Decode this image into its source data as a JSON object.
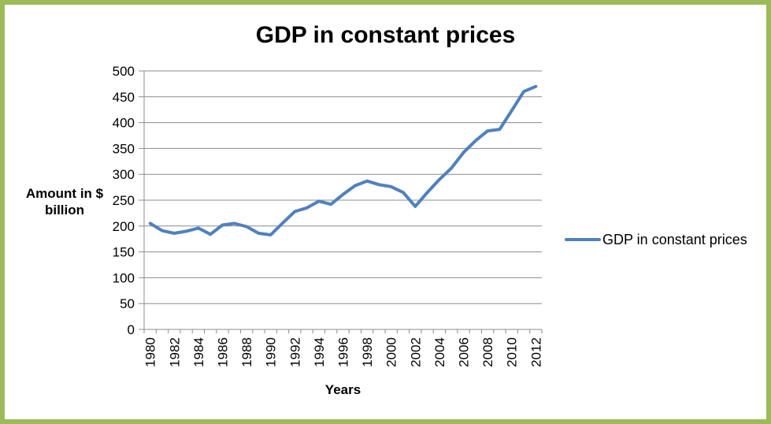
{
  "window": {
    "background": "#FFFFFF",
    "border_color": "#9BBB59"
  },
  "chart_data": {
    "type": "line",
    "title": "GDP in constant prices",
    "xlabel": "Years",
    "ylabel": "Amount in $ billion",
    "x": [
      1980,
      1981,
      1982,
      1983,
      1984,
      1985,
      1986,
      1987,
      1988,
      1989,
      1990,
      1991,
      1992,
      1993,
      1994,
      1995,
      1996,
      1997,
      1998,
      1999,
      2000,
      2001,
      2002,
      2003,
      2004,
      2005,
      2006,
      2007,
      2008,
      2009,
      2010,
      2011,
      2012
    ],
    "x_tick_labels": [
      "1980",
      "1982",
      "1984",
      "1986",
      "1988",
      "1990",
      "1992",
      "1994",
      "1996",
      "1998",
      "2000",
      "2002",
      "2004",
      "2006",
      "2008",
      "2010",
      "2012"
    ],
    "x_label_rotation": -90,
    "series": [
      {
        "name": "GDP in constant prices",
        "color": "#4F81BD",
        "values": [
          205,
          191,
          186,
          190,
          196,
          184,
          202,
          205,
          199,
          186,
          183,
          206,
          228,
          235,
          248,
          242,
          261,
          278,
          287,
          280,
          276,
          265,
          238,
          265,
          290,
          312,
          342,
          365,
          384,
          387,
          423,
          460,
          470
        ]
      }
    ],
    "ylim": [
      0,
      500
    ],
    "y_tick_step": 50,
    "y_tick_labels": [
      "0",
      "50",
      "100",
      "150",
      "200",
      "250",
      "300",
      "350",
      "400",
      "450",
      "500"
    ],
    "grid": "horizontal",
    "gridline_color": "#8C8C8C",
    "axis_color": "#8C8C8C",
    "legend_position": "right",
    "line_width": 4
  }
}
